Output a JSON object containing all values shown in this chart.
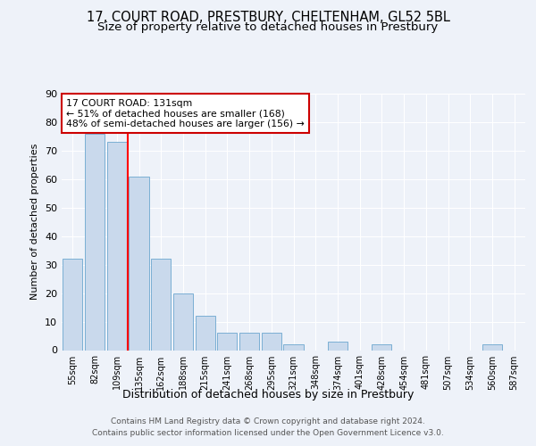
{
  "title1": "17, COURT ROAD, PRESTBURY, CHELTENHAM, GL52 5BL",
  "title2": "Size of property relative to detached houses in Prestbury",
  "xlabel": "Distribution of detached houses by size in Prestbury",
  "ylabel": "Number of detached properties",
  "bar_labels": [
    "55sqm",
    "82sqm",
    "109sqm",
    "135sqm",
    "162sqm",
    "188sqm",
    "215sqm",
    "241sqm",
    "268sqm",
    "295sqm",
    "321sqm",
    "348sqm",
    "374sqm",
    "401sqm",
    "428sqm",
    "454sqm",
    "481sqm",
    "507sqm",
    "534sqm",
    "560sqm",
    "587sqm"
  ],
  "bar_values": [
    32,
    76,
    73,
    61,
    32,
    20,
    12,
    6,
    6,
    6,
    2,
    0,
    3,
    0,
    2,
    0,
    0,
    0,
    0,
    2,
    0
  ],
  "bar_color": "#c9d9ec",
  "bar_edgecolor": "#7bafd4",
  "property_line_x": 3,
  "property_line_label": "17 COURT ROAD: 131sqm",
  "annotation_line1": "← 51% of detached houses are smaller (168)",
  "annotation_line2": "48% of semi-detached houses are larger (156) →",
  "annotation_box_color": "#cc0000",
  "ylim": [
    0,
    90
  ],
  "yticks": [
    0,
    10,
    20,
    30,
    40,
    50,
    60,
    70,
    80,
    90
  ],
  "footer1": "Contains HM Land Registry data © Crown copyright and database right 2024.",
  "footer2": "Contains public sector information licensed under the Open Government Licence v3.0.",
  "bg_color": "#eef2f9",
  "grid_color": "#ffffff",
  "title1_fontsize": 10.5,
  "title2_fontsize": 9.5
}
